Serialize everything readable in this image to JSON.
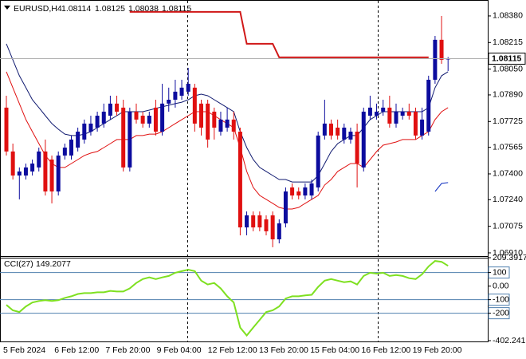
{
  "chart_data": {
    "type": "candlestick",
    "symbol": "EURUSD,H4",
    "up_color": "#0c0c9e",
    "down_color": "#e01010",
    "candles": {
      "open": [
        1.07811,
        1.07539,
        1.0739,
        1.0739,
        1.07415,
        1.0744,
        1.07539,
        1.07489,
        1.07291,
        1.07514,
        1.07514,
        1.07563,
        1.07613,
        1.07662,
        1.07687,
        1.07712,
        1.07761,
        1.07836,
        1.07811,
        1.0744,
        1.07786,
        1.07761,
        1.07712,
        1.07811,
        1.07662,
        1.07836,
        1.0786,
        1.07885,
        1.0791,
        1.07935,
        1.07836,
        1.07836,
        1.07786,
        1.07662,
        1.07687,
        1.07737,
        1.07662,
        1.07068,
        1.07143,
        1.07143,
        1.07118,
        1.07143,
        1.06994,
        1.07093,
        1.07316,
        1.07291,
        1.07266,
        1.07266,
        1.07316,
        1.07638,
        1.07712,
        1.07687,
        1.07613,
        1.07613,
        1.07662,
        1.0744,
        1.07761,
        1.07761,
        1.07786,
        1.07811,
        1.07712,
        1.07761,
        1.07786,
        1.07786,
        1.07638,
        1.07662,
        1.07984,
        1.08232,
        1.08114
      ],
      "high": [
        1.07885,
        1.07588,
        1.0744,
        1.07464,
        1.07489,
        1.07563,
        1.07613,
        1.07514,
        1.07539,
        1.07588,
        1.07638,
        1.07687,
        1.07737,
        1.07761,
        1.07786,
        1.07836,
        1.07885,
        1.07885,
        1.0786,
        1.07811,
        1.07836,
        1.07786,
        1.07786,
        1.0786,
        1.07959,
        1.07935,
        1.07984,
        1.07984,
        1.08058,
        1.07959,
        1.0786,
        1.0786,
        1.07811,
        1.07786,
        1.07811,
        1.07786,
        1.07687,
        1.07167,
        1.07167,
        1.07167,
        1.07143,
        1.07167,
        1.07118,
        1.07316,
        1.07341,
        1.07316,
        1.07341,
        1.07365,
        1.07662,
        1.0786,
        1.07737,
        1.07737,
        1.07712,
        1.07687,
        1.07712,
        1.07811,
        1.07885,
        1.07836,
        1.0786,
        1.07885,
        1.07836,
        1.07811,
        1.07836,
        1.07811,
        1.07811,
        1.08009,
        1.08256,
        1.0838,
        1.08125
      ],
      "low": [
        1.07514,
        1.07365,
        1.07242,
        1.07365,
        1.0739,
        1.07415,
        1.07266,
        1.07217,
        1.07266,
        1.07489,
        1.07489,
        1.07539,
        1.07588,
        1.07638,
        1.07662,
        1.07687,
        1.07737,
        1.07761,
        1.07415,
        1.07415,
        1.07712,
        1.07687,
        1.07687,
        1.07638,
        1.07638,
        1.07786,
        1.07811,
        1.0786,
        1.07885,
        1.07662,
        1.07638,
        1.07563,
        1.07613,
        1.07638,
        1.07662,
        1.07613,
        1.07019,
        1.07019,
        1.07044,
        1.07044,
        1.07019,
        1.06945,
        1.06969,
        1.07068,
        1.07242,
        1.07242,
        1.07242,
        1.07242,
        1.07291,
        1.07613,
        1.07613,
        1.07613,
        1.07588,
        1.07588,
        1.07316,
        1.07415,
        1.07737,
        1.07737,
        1.07761,
        1.07687,
        1.07687,
        1.07737,
        1.07737,
        1.07613,
        1.07613,
        1.07638,
        1.07959,
        1.08083,
        1.08038
      ],
      "close": [
        1.07539,
        1.0739,
        1.07415,
        1.0744,
        1.07464,
        1.07539,
        1.07291,
        1.07291,
        1.07514,
        1.07563,
        1.07613,
        1.07662,
        1.07712,
        1.07712,
        1.07761,
        1.07786,
        1.07836,
        1.07786,
        1.0744,
        1.07786,
        1.07737,
        1.07712,
        1.07761,
        1.07662,
        1.07836,
        1.0786,
        1.0791,
        1.07935,
        1.07959,
        1.07712,
        1.07687,
        1.07613,
        1.07687,
        1.07737,
        1.07737,
        1.07662,
        1.07068,
        1.07143,
        1.07068,
        1.07068,
        1.07044,
        1.06994,
        1.07093,
        1.07291,
        1.07266,
        1.07266,
        1.07316,
        1.07341,
        1.07638,
        1.07712,
        1.07638,
        1.07638,
        1.07687,
        1.07662,
        1.07464,
        1.07786,
        1.07811,
        1.07786,
        1.07811,
        1.07712,
        1.07786,
        1.07786,
        1.07761,
        1.07638,
        1.07737,
        1.07984,
        1.08232,
        1.08108,
        1.08115
      ]
    },
    "overlays": [
      {
        "color": "#101a70",
        "values": [
          1.08207,
          1.08108,
          1.08009,
          1.07935,
          1.0786,
          1.07811,
          1.07761,
          1.07712,
          1.07677,
          1.07647,
          1.07638,
          1.07638,
          1.07647,
          1.07662,
          1.07687,
          1.07712,
          1.07737,
          1.07761,
          1.07786,
          1.07786,
          1.07786,
          1.07786,
          1.07796,
          1.07806,
          1.07816,
          1.07826,
          1.07836,
          1.07845,
          1.0786,
          1.07885,
          1.07895,
          1.07885,
          1.0786,
          1.07836,
          1.07811,
          1.07786,
          1.07662,
          1.07563,
          1.07489,
          1.0744,
          1.07415,
          1.0739,
          1.07365,
          1.07365,
          1.0735,
          1.0735,
          1.0735,
          1.0735,
          1.0739,
          1.07464,
          1.07539,
          1.07588,
          1.07613,
          1.07638,
          1.07638,
          1.07687,
          1.07737,
          1.07761,
          1.07786,
          1.07786,
          1.07786,
          1.07786,
          1.07786,
          1.07786,
          1.07786,
          1.07811,
          1.07935,
          1.08009,
          1.08034
        ]
      },
      {
        "color": "#e01010",
        "values": [
          1.08034,
          1.07935,
          1.07836,
          1.07737,
          1.07662,
          1.07588,
          1.07514,
          1.07464,
          1.0744,
          1.0744,
          1.07464,
          1.07489,
          1.07514,
          1.07529,
          1.07539,
          1.07563,
          1.07588,
          1.07613,
          1.07613,
          1.07613,
          1.07638,
          1.07638,
          1.07647,
          1.07647,
          1.07662,
          1.07687,
          1.07712,
          1.07737,
          1.07761,
          1.07786,
          1.07786,
          1.07786,
          1.07761,
          1.07737,
          1.07712,
          1.07687,
          1.07563,
          1.07415,
          1.07316,
          1.07266,
          1.07242,
          1.07217,
          1.07192,
          1.07182,
          1.07182,
          1.07192,
          1.07217,
          1.07242,
          1.07266,
          1.07331,
          1.07365,
          1.07415,
          1.0744,
          1.07464,
          1.07464,
          1.0744,
          1.07489,
          1.07539,
          1.07578,
          1.07588,
          1.07598,
          1.07613,
          1.07613,
          1.07613,
          1.07638,
          1.07662,
          1.07737,
          1.07786,
          1.07811
        ]
      },
      {
        "color": "#d01818",
        "values": [
          null,
          null,
          null,
          null,
          null,
          null,
          null,
          null,
          null,
          null,
          null,
          null,
          null,
          null,
          null,
          null,
          null,
          null,
          null,
          1.08405,
          1.08405,
          1.08405,
          1.08405,
          1.08405,
          1.08405,
          1.08405,
          1.08405,
          1.08405,
          1.08405,
          1.08405,
          1.08405,
          1.08405,
          1.08405,
          1.08405,
          1.08405,
          1.08405,
          1.08405,
          1.08207,
          1.08207,
          1.08207,
          1.08207,
          1.08207,
          1.08123,
          1.08123,
          1.08123,
          1.08123,
          1.08123,
          1.08123,
          1.08123,
          1.08123,
          1.08123,
          1.08123,
          1.08123,
          1.08123,
          1.08123,
          1.08123,
          1.08123,
          1.08123,
          1.08123,
          1.08123,
          1.08123,
          1.08123,
          1.08123,
          1.08123,
          1.08123,
          1.08123,
          null,
          null,
          null
        ]
      },
      {
        "color": "#1030c0",
        "values": [
          null,
          null,
          null,
          null,
          null,
          null,
          null,
          null,
          null,
          null,
          null,
          null,
          null,
          null,
          null,
          null,
          null,
          null,
          null,
          null,
          null,
          null,
          null,
          null,
          null,
          null,
          null,
          null,
          null,
          null,
          null,
          null,
          null,
          null,
          null,
          null,
          null,
          null,
          null,
          null,
          null,
          null,
          null,
          null,
          null,
          null,
          null,
          null,
          null,
          null,
          null,
          null,
          null,
          null,
          null,
          null,
          null,
          null,
          null,
          null,
          null,
          null,
          null,
          null,
          null,
          null,
          1.07291,
          1.07341,
          1.07346
        ]
      }
    ],
    "ylim": [
      1.06895,
      1.08459
    ],
    "yticks": [
      {
        "value": 1.0838,
        "label": "1.08380"
      },
      {
        "value": 1.08215,
        "label": "1.08215"
      },
      {
        "value": 1.0805,
        "label": "1.08050"
      },
      {
        "value": 1.0789,
        "label": "1.07890"
      },
      {
        "value": 1.07725,
        "label": "1.07725"
      },
      {
        "value": 1.07565,
        "label": "1.07565"
      },
      {
        "value": 1.074,
        "label": "1.07400"
      },
      {
        "value": 1.0724,
        "label": "1.07240"
      },
      {
        "value": 1.07075,
        "label": "1.07075"
      },
      {
        "value": 1.0691,
        "label": "1.06910"
      }
    ],
    "xlabels": [
      "5 Feb 2024",
      "6 Feb 12:00",
      "7 Feb 20:00",
      "9 Feb 04:00",
      "12 Feb 12:00",
      "13 Feb 20:00",
      "15 Feb 04:00",
      "16 Feb 12:00",
      "19 Feb 20:00"
    ],
    "cci": {
      "label": "CCI(27)",
      "color": "#7ee020",
      "level_color": "#4f7fae",
      "values": [
        -139,
        -179,
        -191,
        -150,
        -121,
        -110,
        -104,
        -110,
        -104,
        -87,
        -75,
        -58,
        -52,
        -52,
        -46,
        -46,
        -35,
        -40,
        -40,
        -17,
        23,
        52,
        64,
        52,
        64,
        75,
        98,
        110,
        121,
        110,
        40,
        12,
        23,
        -17,
        -75,
        -121,
        -306,
        -364,
        -306,
        -249,
        -191,
        -179,
        -150,
        -92,
        -75,
        -75,
        -69,
        -64,
        -6,
        40,
        52,
        40,
        29,
        35,
        12,
        75,
        98,
        92,
        98,
        75,
        81,
        75,
        58,
        52,
        87,
        145,
        185,
        179,
        149.2077
      ],
      "ylim": [
        -402.241,
        209.3917
      ],
      "yticks": [
        209.3917,
        100,
        {
          "value": 0,
          "label": "0.00"
        },
        -100,
        -200,
        -402.241
      ],
      "levels": [
        100,
        -100,
        -200
      ]
    }
  }
}
